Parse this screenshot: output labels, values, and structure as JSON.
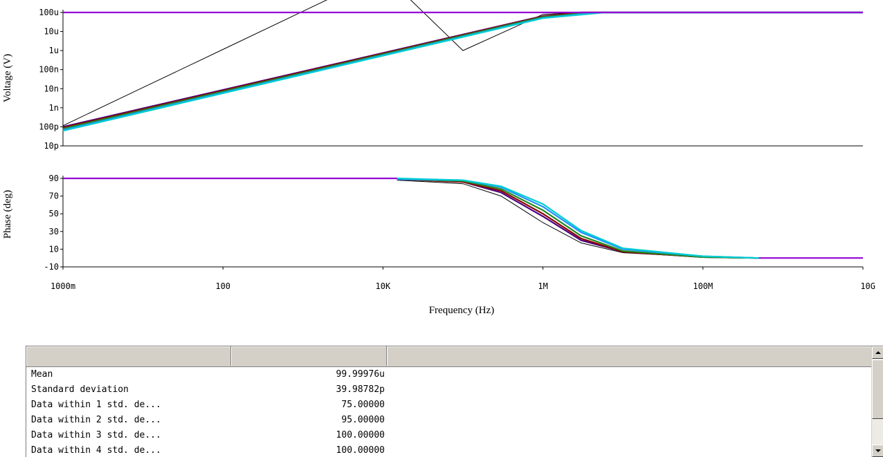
{
  "chart_data": [
    {
      "type": "line",
      "xscale": "log",
      "yscale": "log",
      "xlim": [
        1,
        10000000000
      ],
      "ylim": [
        1e-11,
        0.0001
      ],
      "xlabel": "",
      "ylabel": "Voltage (V)",
      "yticks": [
        {
          "value": 0.0001,
          "label": "100u"
        },
        {
          "value": 1e-05,
          "label": "10u"
        },
        {
          "value": 1e-06,
          "label": "1u"
        },
        {
          "value": 1e-07,
          "label": "100n"
        },
        {
          "value": 1e-08,
          "label": "10n"
        },
        {
          "value": 1e-09,
          "label": "1n"
        },
        {
          "value": 1e-10,
          "label": "100p"
        },
        {
          "value": 1e-11,
          "label": "10p"
        }
      ],
      "series": [
        {
          "color": "#000000",
          "x": [
            1,
            10,
            100,
            1000,
            10000,
            100000,
            1000000,
            3000000,
            10000000000
          ],
          "y": [
            1.15e-10,
            1.15e-08,
            1.15e-06,
            0.000115,
            0.0115,
            1e-06,
            8e-05,
            0.0001,
            0.0001
          ]
        },
        {
          "color": "#4b0082",
          "x": [
            1,
            1000000,
            3000000,
            10000000000
          ],
          "y": [
            1e-10,
            6.5e-05,
            0.0001,
            0.0001
          ]
        },
        {
          "color": "#8b0000",
          "x": [
            1,
            1000000,
            3000000,
            10000000000
          ],
          "y": [
            9e-11,
            6.2e-05,
            0.0001,
            0.0001
          ]
        },
        {
          "color": "#228b22",
          "x": [
            1,
            1000000,
            4000000,
            10000000000
          ],
          "y": [
            8e-11,
            5.8e-05,
            0.0001,
            0.0001
          ]
        },
        {
          "color": "#1e90ff",
          "x": [
            1,
            1000000,
            5000000,
            10000000000
          ],
          "y": [
            6.8e-11,
            5.2e-05,
            0.0001,
            0.0001
          ]
        },
        {
          "color": "#00ced1",
          "x": [
            1,
            1000000,
            6000000,
            10000000000
          ],
          "y": [
            6.2e-11,
            5e-05,
            0.0001,
            0.0001
          ]
        },
        {
          "color": "#9400d3",
          "x": [
            1,
            10000000000
          ],
          "y": [
            0.0001,
            0.0001
          ]
        }
      ]
    },
    {
      "type": "line",
      "xscale": "log",
      "xlim": [
        1,
        10000000000
      ],
      "ylim": [
        -10,
        90
      ],
      "xlabel": "Frequency (Hz)",
      "ylabel": "Phase (deg)",
      "yticks": [
        {
          "value": 90,
          "label": "90"
        },
        {
          "value": 70,
          "label": "70"
        },
        {
          "value": 50,
          "label": "50"
        },
        {
          "value": 30,
          "label": "30"
        },
        {
          "value": 10,
          "label": "10"
        },
        {
          "value": -10,
          "label": "-10"
        }
      ],
      "xticks": [
        {
          "value": 1,
          "label": "1000m"
        },
        {
          "value": 100,
          "label": "100"
        },
        {
          "value": 10000,
          "label": "10K"
        },
        {
          "value": 1000000,
          "label": "1M"
        },
        {
          "value": 100000000,
          "label": "100M"
        },
        {
          "value": 10000000000,
          "label": "10G"
        }
      ],
      "series": [
        {
          "color": "#000000",
          "x": [
            15000,
            100000,
            300000,
            1000000,
            3000000,
            10000000,
            100000000,
            500000000
          ],
          "y": [
            88,
            84,
            70,
            40,
            17,
            6,
            1,
            0
          ]
        },
        {
          "color": "#4b0082",
          "x": [
            15000,
            100000,
            300000,
            1000000,
            3000000,
            10000000,
            100000000,
            500000000
          ],
          "y": [
            89,
            86,
            74,
            47,
            20,
            7,
            1,
            0
          ]
        },
        {
          "color": "#8b0000",
          "x": [
            15000,
            100000,
            300000,
            1000000,
            3000000,
            10000000,
            100000000,
            500000000
          ],
          "y": [
            89,
            86,
            76,
            50,
            22,
            7,
            1,
            0
          ]
        },
        {
          "color": "#228b22",
          "x": [
            15000,
            100000,
            300000,
            1000000,
            3000000,
            10000000,
            100000000,
            500000000
          ],
          "y": [
            89,
            87,
            78,
            54,
            25,
            8,
            1,
            0
          ]
        },
        {
          "color": "#1e90ff",
          "x": [
            15000,
            100000,
            300000,
            1000000,
            3000000,
            10000000,
            100000000,
            500000000
          ],
          "y": [
            89,
            88,
            80,
            58,
            29,
            10,
            2,
            0
          ]
        },
        {
          "color": "#00ced1",
          "x": [
            15000,
            100000,
            300000,
            1000000,
            3000000,
            10000000,
            100000000,
            500000000
          ],
          "y": [
            90,
            88,
            81,
            61,
            31,
            11,
            2,
            0
          ]
        },
        {
          "color": "#9400d3",
          "x": [
            1,
            15000
          ],
          "y": [
            90,
            90
          ]
        },
        {
          "color": "#9400d3",
          "x": [
            500000000,
            10000000000
          ],
          "y": [
            0,
            0
          ]
        }
      ]
    }
  ],
  "results_table": {
    "columns": [
      "",
      "",
      ""
    ],
    "rows": [
      {
        "label": "Mean",
        "value": "99.99976u"
      },
      {
        "label": "Standard deviation",
        "value": "39.98782p"
      },
      {
        "label": "Data within 1 std. de...",
        "value": "75.00000"
      },
      {
        "label": "Data within 2 std. de...",
        "value": "95.00000"
      },
      {
        "label": "Data within 3 std. de...",
        "value": "100.00000"
      },
      {
        "label": "Data within 4 std. de...",
        "value": "100.00000"
      }
    ]
  }
}
